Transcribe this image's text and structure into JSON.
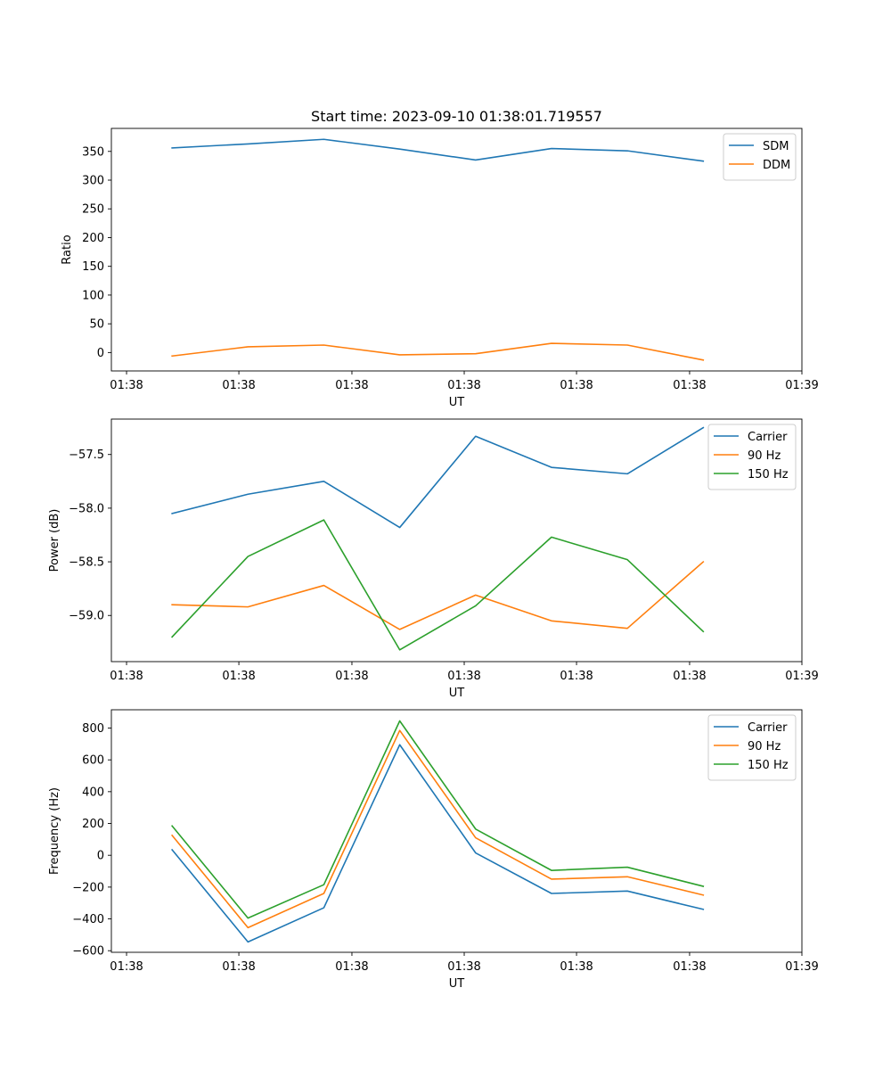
{
  "figure_title": "Start time: 2023-09-10 01:38:01.719557",
  "colors": {
    "blue": "#1f77b4",
    "orange": "#ff7f0e",
    "green": "#2ca02c"
  },
  "chart_data": [
    {
      "type": "line",
      "title": "Start time: 2023-09-10 01:38:01.719557",
      "xlabel": "UT",
      "ylabel": "Ratio",
      "x": [
        1,
        2,
        3,
        4,
        5,
        6,
        7,
        8
      ],
      "xlim": [
        0.2,
        9.3
      ],
      "x_ticks": [
        0.4,
        1.88,
        3.37,
        4.85,
        6.33,
        7.82,
        9.3
      ],
      "x_tick_labels": [
        "01:38",
        "01:38",
        "01:38",
        "01:38",
        "01:38",
        "01:38",
        "01:39"
      ],
      "ylim": [
        -32,
        390
      ],
      "y_ticks": [
        0,
        50,
        100,
        150,
        200,
        250,
        300,
        350
      ],
      "y_tick_labels": [
        "0",
        "50",
        "100",
        "150",
        "200",
        "250",
        "300",
        "350"
      ],
      "legend_position": "top-right",
      "series": [
        {
          "name": "SDM",
          "color": "#1f77b4",
          "values": [
            356,
            363,
            371,
            354,
            335,
            355,
            351,
            333
          ]
        },
        {
          "name": "DDM",
          "color": "#ff7f0e",
          "values": [
            -6,
            10,
            13,
            -4,
            -2,
            16,
            13,
            -13
          ]
        }
      ]
    },
    {
      "type": "line",
      "xlabel": "UT",
      "ylabel": "Power (dB)",
      "x": [
        1,
        2,
        3,
        4,
        5,
        6,
        7,
        8
      ],
      "xlim": [
        0.2,
        9.3
      ],
      "x_ticks": [
        0.4,
        1.88,
        3.37,
        4.85,
        6.33,
        7.82,
        9.3
      ],
      "x_tick_labels": [
        "01:38",
        "01:38",
        "01:38",
        "01:38",
        "01:38",
        "01:38",
        "01:39"
      ],
      "ylim": [
        -59.43,
        -57.17
      ],
      "y_ticks": [
        -59.0,
        -58.5,
        -58.0,
        -57.5
      ],
      "y_tick_labels": [
        "−59.0",
        "−58.5",
        "−58.0",
        "−57.5"
      ],
      "legend_position": "top-right",
      "series": [
        {
          "name": "Carrier",
          "color": "#1f77b4",
          "values": [
            -58.05,
            -57.87,
            -57.75,
            -58.18,
            -57.33,
            -57.62,
            -57.68,
            -57.25
          ]
        },
        {
          "name": "90 Hz",
          "color": "#ff7f0e",
          "values": [
            -58.9,
            -58.92,
            -58.72,
            -59.13,
            -58.81,
            -59.05,
            -59.12,
            -58.5
          ]
        },
        {
          "name": "150 Hz",
          "color": "#2ca02c",
          "values": [
            -59.2,
            -58.45,
            -58.11,
            -59.32,
            -58.91,
            -58.27,
            -58.48,
            -59.15
          ]
        }
      ]
    },
    {
      "type": "line",
      "xlabel": "UT",
      "ylabel": "Frequency (Hz)",
      "x": [
        1,
        2,
        3,
        4,
        5,
        6,
        7,
        8
      ],
      "xlim": [
        0.2,
        9.3
      ],
      "x_ticks": [
        0.4,
        1.88,
        3.37,
        4.85,
        6.33,
        7.82,
        9.3
      ],
      "x_tick_labels": [
        "01:38",
        "01:38",
        "01:38",
        "01:38",
        "01:38",
        "01:38",
        "01:39"
      ],
      "ylim": [
        -610,
        915
      ],
      "y_ticks": [
        -600,
        -400,
        -200,
        0,
        200,
        400,
        600,
        800
      ],
      "y_tick_labels": [
        "−600",
        "−400",
        "−200",
        "0",
        "200",
        "400",
        "600",
        "800"
      ],
      "legend_position": "top-right",
      "series": [
        {
          "name": "Carrier",
          "color": "#1f77b4",
          "values": [
            35,
            -545,
            -330,
            695,
            15,
            -240,
            -225,
            -340
          ]
        },
        {
          "name": "90 Hz",
          "color": "#ff7f0e",
          "values": [
            125,
            -455,
            -240,
            785,
            110,
            -150,
            -135,
            -250
          ]
        },
        {
          "name": "150 Hz",
          "color": "#2ca02c",
          "values": [
            185,
            -395,
            -185,
            845,
            165,
            -95,
            -75,
            -195
          ]
        }
      ]
    }
  ]
}
